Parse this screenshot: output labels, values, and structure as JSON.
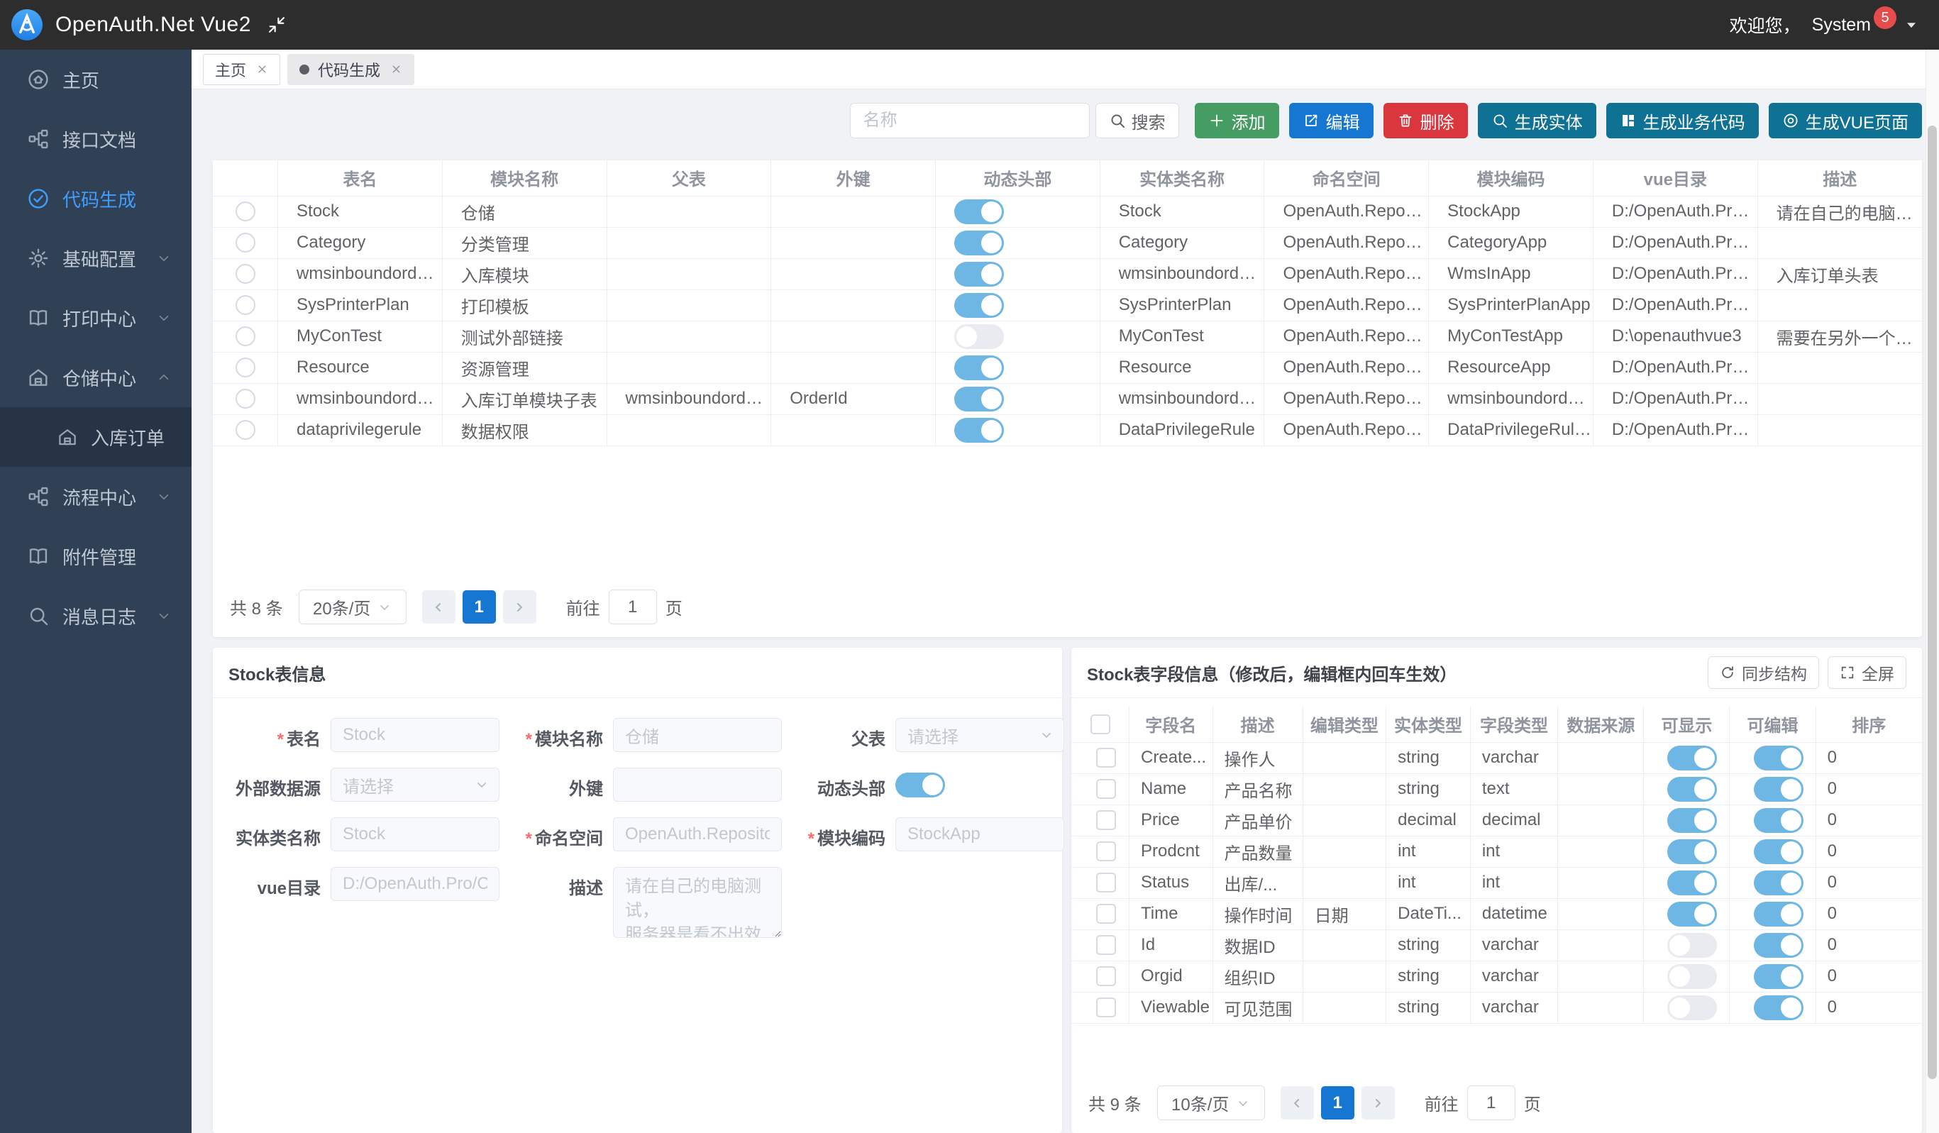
{
  "app": {
    "title": "OpenAuth.Net Vue2",
    "welcome": "欢迎您，",
    "user": "System",
    "badge_count": "5"
  },
  "colors": {
    "header_bg": "#2d2d2d",
    "sidebar_bg": "#304156",
    "submenu_bg": "#263445",
    "accent": "#409eff",
    "toggle_on": "#6eb6e3",
    "toggle_off": "#e9ebf0",
    "pager_active": "#1677d2",
    "badge": "#e74c4c",
    "btn_add": "#469d63",
    "btn_edit": "#1677d2",
    "btn_delete": "#d9363e",
    "btn_generate": "#0f7193"
  },
  "tabs": [
    {
      "key": "home",
      "label": "主页",
      "active": false
    },
    {
      "key": "codegen",
      "label": "代码生成",
      "active": true
    }
  ],
  "sidebar": {
    "items": [
      {
        "key": "home",
        "label": "主页",
        "icon": "home-icon",
        "active": false,
        "expandable": false
      },
      {
        "key": "api-docs",
        "label": "接口文档",
        "icon": "api-icon",
        "active": false,
        "expandable": false
      },
      {
        "key": "codegen",
        "label": "代码生成",
        "icon": "check-circle-icon",
        "active": true,
        "expandable": false
      },
      {
        "key": "base-config",
        "label": "基础配置",
        "icon": "gear-icon",
        "active": false,
        "expandable": true,
        "expanded": false
      },
      {
        "key": "print-center",
        "label": "打印中心",
        "icon": "book-icon",
        "active": false,
        "expandable": true,
        "expanded": false
      },
      {
        "key": "warehouse-center",
        "label": "仓储中心",
        "icon": "warehouse-icon",
        "active": false,
        "expandable": true,
        "expanded": true,
        "children": [
          {
            "key": "inbound-order",
            "label": "入库订单",
            "icon": "warehouse-icon"
          }
        ]
      },
      {
        "key": "flow-center",
        "label": "流程中心",
        "icon": "flow-icon",
        "active": false,
        "expandable": true,
        "expanded": false
      },
      {
        "key": "attachment",
        "label": "附件管理",
        "icon": "attachment-icon",
        "active": false,
        "expandable": false
      },
      {
        "key": "message-log",
        "label": "消息日志",
        "icon": "search-icon",
        "active": false,
        "expandable": true,
        "expanded": false
      }
    ]
  },
  "toolbar": {
    "search_placeholder": "名称",
    "search_label": "搜索",
    "buttons": [
      {
        "key": "add",
        "label": "添加",
        "icon": "plus-icon",
        "color": "#469d63"
      },
      {
        "key": "edit",
        "label": "编辑",
        "icon": "edit-icon",
        "color": "#1677d2"
      },
      {
        "key": "delete",
        "label": "删除",
        "icon": "trash-icon",
        "color": "#d9363e"
      },
      {
        "key": "gen-entity",
        "label": "生成实体",
        "icon": "search-icon",
        "color": "#0f7193"
      },
      {
        "key": "gen-business-code",
        "label": "生成业务代码",
        "icon": "grid-icon",
        "color": "#0f7193"
      },
      {
        "key": "gen-vue-page",
        "label": "生成VUE页面",
        "icon": "target-icon",
        "color": "#0f7193"
      }
    ]
  },
  "main_table": {
    "headers": [
      "表名",
      "模块名称",
      "父表",
      "外键",
      "动态头部",
      "实体类名称",
      "命名空间",
      "模块编码",
      "vue目录",
      "描述"
    ],
    "rows": [
      {
        "table_name": "Stock",
        "module": "仓储",
        "parent": "",
        "fk": "",
        "dynamic": true,
        "entity": "Stock",
        "namespace": "OpenAuth.Reposit...",
        "module_code": "StockApp",
        "vue_dir": "D:/OpenAuth.Pro/...",
        "desc": "请在自己的电脑测..."
      },
      {
        "table_name": "Category",
        "module": "分类管理",
        "parent": "",
        "fk": "",
        "dynamic": true,
        "entity": "Category",
        "namespace": "OpenAuth.Reposit...",
        "module_code": "CategoryApp",
        "vue_dir": "D:/OpenAuth.Pro/...",
        "desc": ""
      },
      {
        "table_name": "wmsinboundordertbl",
        "module": "入库模块",
        "parent": "",
        "fk": "",
        "dynamic": true,
        "entity": "wmsinboundordertbl",
        "namespace": "OpenAuth.Reposit...",
        "module_code": "WmsInApp",
        "vue_dir": "D:/OpenAuth.Pro/...",
        "desc": "入库订单头表"
      },
      {
        "table_name": "SysPrinterPlan",
        "module": "打印模板",
        "parent": "",
        "fk": "",
        "dynamic": true,
        "entity": "SysPrinterPlan",
        "namespace": "OpenAuth.Reposit...",
        "module_code": "SysPrinterPlanApp",
        "vue_dir": "D:/OpenAuth.Pro/...",
        "desc": ""
      },
      {
        "table_name": "MyConTest",
        "module": "测试外部链接",
        "parent": "",
        "fk": "",
        "dynamic": false,
        "entity": "MyConTest",
        "namespace": "OpenAuth.Reposit...",
        "module_code": "MyConTestApp",
        "vue_dir": "D:\\openauthvue3",
        "desc": "需要在另外一个数..."
      },
      {
        "table_name": "Resource",
        "module": "资源管理",
        "parent": "",
        "fk": "",
        "dynamic": true,
        "entity": "Resource",
        "namespace": "OpenAuth.Reposit...",
        "module_code": "ResourceApp",
        "vue_dir": "D:/OpenAuth.Pro/...",
        "desc": ""
      },
      {
        "table_name": "wmsinboundorderdtbl",
        "module": "入库订单模块子表",
        "parent": "wmsinboundordertbl",
        "fk": "OrderId",
        "dynamic": true,
        "entity": "wmsinboundorder...",
        "namespace": "OpenAuth.Reposit...",
        "module_code": "wmsinboundorder...",
        "vue_dir": "D:/OpenAuth.Pro/...",
        "desc": ""
      },
      {
        "table_name": "dataprivilegerule",
        "module": "数据权限",
        "parent": "",
        "fk": "",
        "dynamic": true,
        "entity": "DataPrivilegeRule",
        "namespace": "OpenAuth.Reposit...",
        "module_code": "DataPrivilegeRule...",
        "vue_dir": "D:/OpenAuth.Pro/...",
        "desc": ""
      }
    ],
    "pagination": {
      "total": "共 8 条",
      "page_size": "20条/页",
      "current": "1",
      "goto_label": "前往",
      "goto_value": "1",
      "page_label": "页"
    }
  },
  "form_panel": {
    "title": "Stock表信息",
    "fields": {
      "table_name": {
        "label": "表名",
        "value": "Stock"
      },
      "module_name": {
        "label": "模块名称",
        "value": "仓储"
      },
      "parent": {
        "label": "父表",
        "placeholder": "请选择"
      },
      "external_ds": {
        "label": "外部数据源",
        "placeholder": "请选择"
      },
      "fk": {
        "label": "外键",
        "value": ""
      },
      "dynamic_header": {
        "label": "动态头部",
        "on": true
      },
      "entity_name": {
        "label": "实体类名称",
        "value": "Stock"
      },
      "namespace": {
        "label": "命名空间",
        "value": "OpenAuth.Repository.D"
      },
      "module_code": {
        "label": "模块编码",
        "value": "StockApp"
      },
      "vue_dir": {
        "label": "vue目录",
        "value": "D:/OpenAuth.Pro/Clien"
      },
      "desc": {
        "label": "描述",
        "value": "请在自己的电脑测试，\n服务器是看不出效果的"
      }
    }
  },
  "fields_panel": {
    "title": "Stock表字段信息（修改后，编辑框内回车生效）",
    "sync_button": "同步结构",
    "fullscreen_button": "全屏",
    "headers": [
      "字段名",
      "描述",
      "编辑类型",
      "实体类型",
      "字段类型",
      "数据来源",
      "可显示",
      "可编辑",
      "排序"
    ],
    "rows": [
      {
        "name": "Create...",
        "desc": "操作人",
        "edit_type": "",
        "entity_type": "string",
        "field_type": "varchar",
        "source": "",
        "visible": true,
        "editable": true,
        "sort": "0"
      },
      {
        "name": "Name",
        "desc": "产品名称",
        "edit_type": "",
        "entity_type": "string",
        "field_type": "text",
        "source": "",
        "visible": true,
        "editable": true,
        "sort": "0"
      },
      {
        "name": "Price",
        "desc": "产品单价",
        "edit_type": "",
        "entity_type": "decimal",
        "field_type": "decimal",
        "source": "",
        "visible": true,
        "editable": true,
        "sort": "0"
      },
      {
        "name": "Prodcnt",
        "desc": "产品数量",
        "edit_type": "",
        "entity_type": "int",
        "field_type": "int",
        "source": "",
        "visible": true,
        "editable": true,
        "sort": "0"
      },
      {
        "name": "Status",
        "desc": "出库/...",
        "edit_type": "",
        "entity_type": "int",
        "field_type": "int",
        "source": "",
        "visible": true,
        "editable": true,
        "sort": "0"
      },
      {
        "name": "Time",
        "desc": "操作时间",
        "edit_type": "日期",
        "entity_type": "DateTi...",
        "field_type": "datetime",
        "source": "",
        "visible": true,
        "editable": true,
        "sort": "0"
      },
      {
        "name": "Id",
        "desc": "数据ID",
        "edit_type": "",
        "entity_type": "string",
        "field_type": "varchar",
        "source": "",
        "visible": false,
        "editable": true,
        "sort": "0"
      },
      {
        "name": "Orgid",
        "desc": "组织ID",
        "edit_type": "",
        "entity_type": "string",
        "field_type": "varchar",
        "source": "",
        "visible": false,
        "editable": true,
        "sort": "0"
      },
      {
        "name": "Viewable",
        "desc": "可见范围",
        "edit_type": "",
        "entity_type": "string",
        "field_type": "varchar",
        "source": "",
        "visible": false,
        "editable": true,
        "sort": "0"
      }
    ],
    "pagination": {
      "total": "共 9 条",
      "page_size": "10条/页",
      "current": "1",
      "goto_label": "前往",
      "goto_value": "1",
      "page_label": "页"
    }
  }
}
